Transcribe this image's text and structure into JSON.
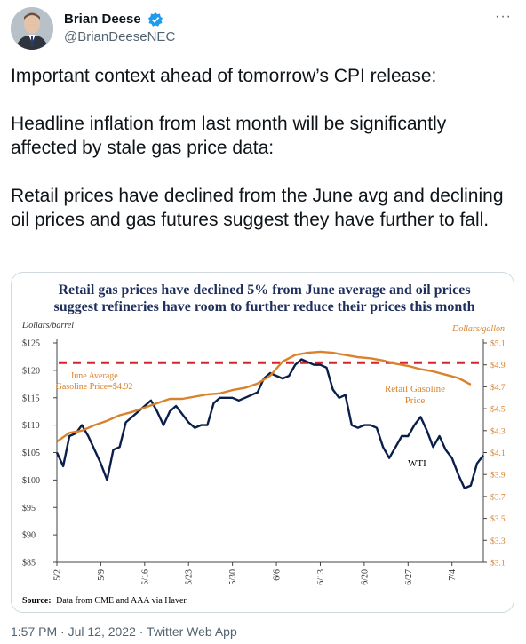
{
  "author": {
    "display_name": "Brian Deese",
    "handle": "@BrianDeeseNEC",
    "verified_icon": "verified-badge-icon",
    "more_icon": "more-options-icon",
    "more_label": "···"
  },
  "tweet": {
    "paragraphs": [
      "Important context ahead of tomorrow’s CPI release:",
      "Headline inflation from last month will be significantly affected by stale gas price data:",
      "Retail prices have declined from the June avg and declining oil prices and gas futures suggest they have further to fall."
    ],
    "timestamp": "1:57 PM · Jul 12, 2022 · Twitter Web App"
  },
  "chart_data": {
    "type": "line",
    "title_line1": "Retail gas prices have declined 5% from June average and oil prices",
    "title_line2": "suggest refineries have room to further reduce their prices this month",
    "left_axis_title": "Dollars/barrel",
    "right_axis_title": "Dollars/gallon",
    "left_ticks": [
      "$125",
      "$120",
      "$115",
      "$110",
      "$105",
      "$100",
      "$95",
      "$90",
      "$85"
    ],
    "left_tick_values": [
      125,
      120,
      115,
      110,
      105,
      100,
      95,
      90,
      85
    ],
    "right_ticks": [
      "$5.1",
      "$4.9",
      "$4.7",
      "$4.5",
      "$4.3",
      "$4.1",
      "$3.9",
      "$3.7",
      "$3.5",
      "$3.3",
      "$3.1"
    ],
    "right_tick_values": [
      5.1,
      4.9,
      4.7,
      4.5,
      4.3,
      4.1,
      3.9,
      3.7,
      3.5,
      3.3,
      3.1
    ],
    "left_ylim": [
      85,
      125
    ],
    "right_ylim": [
      3.1,
      5.1
    ],
    "x_ticks": [
      "5/2",
      "5/9",
      "5/16",
      "5/23",
      "5/30",
      "6/6",
      "6/13",
      "6/20",
      "6/27",
      "7/4"
    ],
    "x_tick_days": [
      0,
      7,
      14,
      21,
      28,
      35,
      42,
      49,
      56,
      63
    ],
    "x_days_range": [
      0,
      68
    ],
    "june_average_label_line1": "June Average",
    "june_average_label_line2": "Gasoline Price=$4.92",
    "june_average_value": 4.92,
    "series": [
      {
        "name": "WTI",
        "axis": "left",
        "color": "#0a1e4a",
        "x_days": [
          0,
          1,
          2,
          3,
          4,
          5,
          6,
          7,
          8,
          9,
          10,
          11,
          12,
          13,
          14,
          15,
          16,
          17,
          18,
          19,
          20,
          21,
          22,
          23,
          24,
          25,
          26,
          27,
          28,
          29,
          30,
          31,
          32,
          33,
          34,
          35,
          36,
          37,
          38,
          39,
          40,
          41,
          42,
          43,
          44,
          45,
          46,
          47,
          48,
          49,
          50,
          51,
          52,
          53,
          54,
          55,
          56,
          57,
          58,
          59,
          60,
          61,
          62,
          63,
          64,
          65,
          66,
          67,
          68
        ],
        "values": [
          105,
          102.5,
          108,
          108.5,
          110,
          108,
          105.5,
          103,
          100,
          105.5,
          106,
          110.5,
          111.5,
          112.5,
          113.5,
          114.5,
          112.5,
          110,
          112.5,
          113.5,
          112,
          110.5,
          109.5,
          110,
          110,
          114,
          115,
          115,
          115,
          114.5,
          115,
          115.5,
          116,
          118.5,
          119.5,
          119,
          118.5,
          119,
          121,
          122,
          121.5,
          121,
          121,
          120.5,
          116.5,
          115,
          115.5,
          110,
          109.5,
          110,
          110,
          109.5,
          106,
          104,
          106,
          108,
          108,
          110,
          111.5,
          109,
          106,
          108,
          105.5,
          104,
          101,
          98.5,
          99,
          103,
          104.5
        ]
      },
      {
        "name": "Retail Gasoline Price",
        "axis": "right",
        "color": "#d9822b",
        "x_days": [
          0,
          2,
          4,
          6,
          8,
          10,
          12,
          14,
          16,
          18,
          20,
          22,
          24,
          26,
          28,
          30,
          32,
          34,
          36,
          38,
          40,
          42,
          44,
          46,
          48,
          50,
          52,
          54,
          56,
          58,
          60,
          62,
          64,
          66
        ],
        "values": [
          4.2,
          4.28,
          4.3,
          4.35,
          4.39,
          4.44,
          4.47,
          4.51,
          4.55,
          4.59,
          4.59,
          4.61,
          4.63,
          4.64,
          4.67,
          4.69,
          4.73,
          4.8,
          4.93,
          4.99,
          5.01,
          5.02,
          5.01,
          4.99,
          4.97,
          4.96,
          4.94,
          4.91,
          4.89,
          4.86,
          4.84,
          4.81,
          4.78,
          4.72
        ]
      }
    ],
    "series_label_gas_line1": "Retail Gasoline",
    "series_label_gas_line2": "Price",
    "series_label_wti": "WTI",
    "source_label": "Source:",
    "source_text": "Data from CME and AAA via Haver.",
    "colors": {
      "title": "#1f2f5c",
      "june_line": "#d8232a",
      "june_label": "#d9822b",
      "right_axis": "#d9822b",
      "left_axis": "#333333"
    },
    "grid": false
  }
}
